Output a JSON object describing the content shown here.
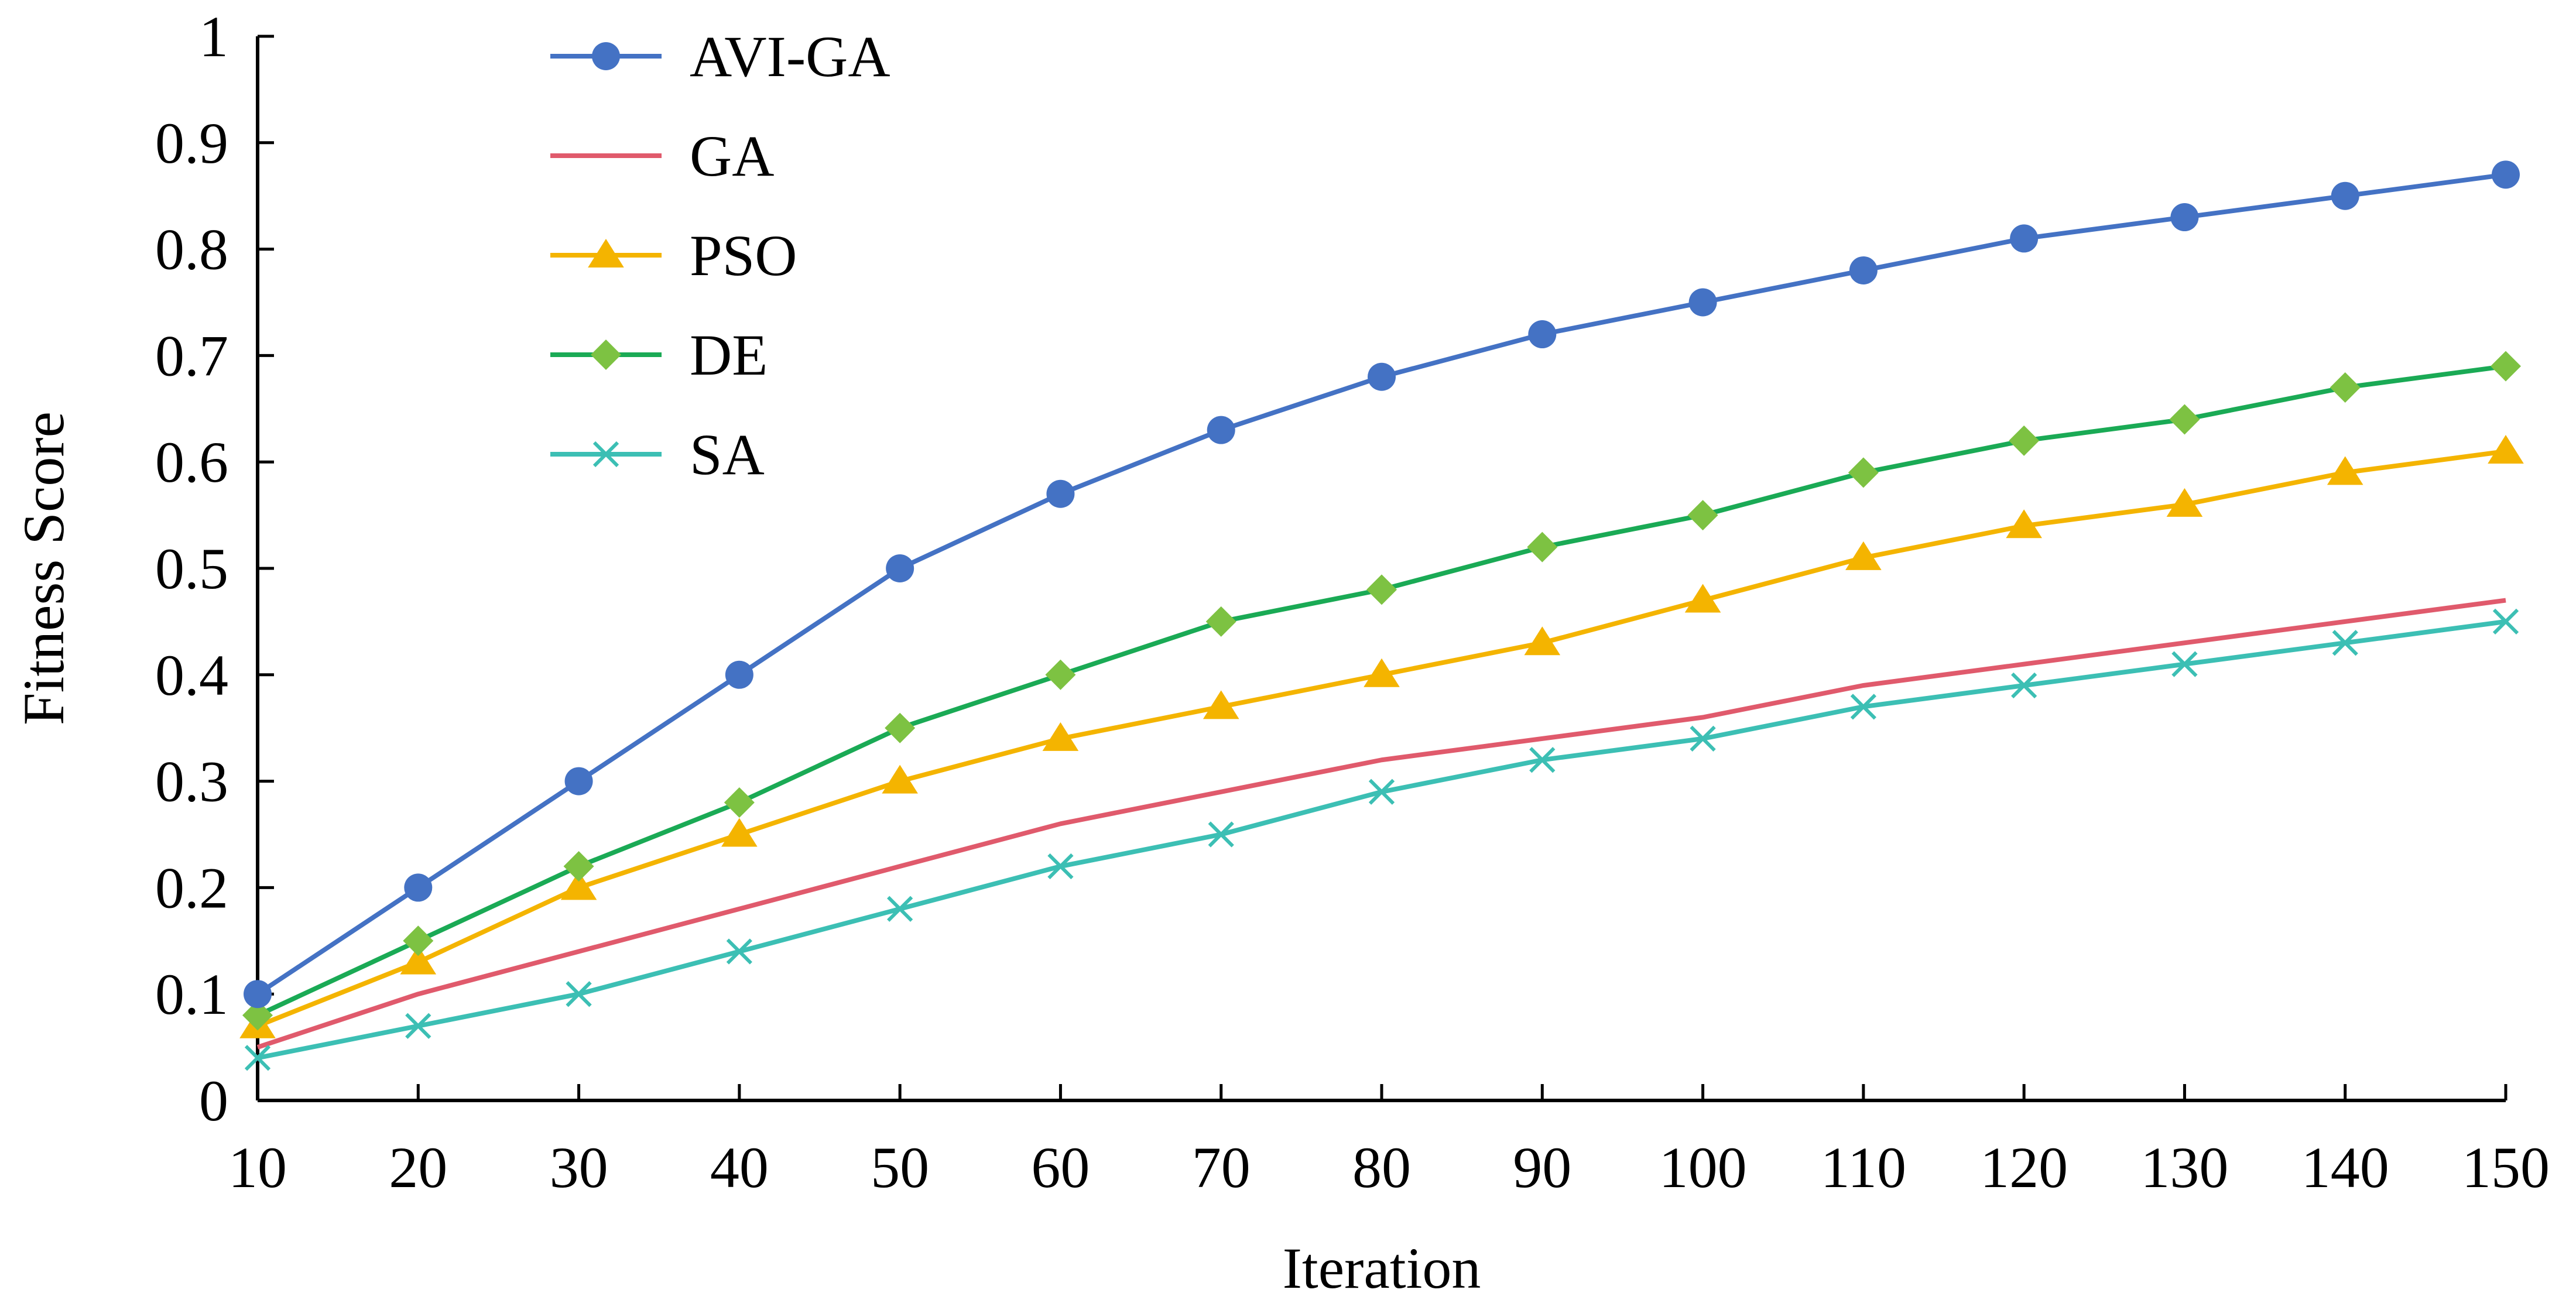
{
  "chart_data": {
    "type": "line",
    "title": "",
    "xlabel": "Iteration",
    "ylabel": "Fitness Score",
    "x": [
      10,
      20,
      30,
      40,
      50,
      60,
      70,
      80,
      90,
      100,
      110,
      120,
      130,
      140,
      150
    ],
    "x_tick_labels": [
      "10",
      "20",
      "30",
      "40",
      "50",
      "60",
      "70",
      "80",
      "90",
      "100",
      "110",
      "120",
      "130",
      "140",
      "150"
    ],
    "ylim": [
      0,
      1
    ],
    "y_ticks": [
      0,
      0.1,
      0.2,
      0.3,
      0.4,
      0.5,
      0.6,
      0.7,
      0.8,
      0.9,
      1
    ],
    "y_tick_labels": [
      "0",
      "0.1",
      "0.2",
      "0.3",
      "0.4",
      "0.5",
      "0.6",
      "0.7",
      "0.8",
      "0.9",
      "1"
    ],
    "grid": false,
    "legend_position": "top-left",
    "series": [
      {
        "name": "AVI-GA",
        "color": "#4472c4",
        "marker": "circle",
        "values": [
          0.1,
          0.2,
          0.3,
          0.4,
          0.5,
          0.57,
          0.63,
          0.68,
          0.72,
          0.75,
          0.78,
          0.81,
          0.83,
          0.85,
          0.87
        ]
      },
      {
        "name": "GA",
        "color": "#e05a6c",
        "marker": "none",
        "values": [
          0.05,
          0.1,
          0.14,
          0.18,
          0.22,
          0.26,
          0.29,
          0.32,
          0.34,
          0.36,
          0.39,
          0.41,
          0.43,
          0.45,
          0.47
        ]
      },
      {
        "name": "PSO",
        "color": "#f4b400",
        "marker": "triangle",
        "values": [
          0.07,
          0.13,
          0.2,
          0.25,
          0.3,
          0.34,
          0.37,
          0.4,
          0.43,
          0.47,
          0.51,
          0.54,
          0.56,
          0.59,
          0.61
        ]
      },
      {
        "name": "DE",
        "color": "#1aaa55",
        "marker": "diamond",
        "marker_color": "#7dc242",
        "values": [
          0.08,
          0.15,
          0.22,
          0.28,
          0.35,
          0.4,
          0.45,
          0.48,
          0.52,
          0.55,
          0.59,
          0.62,
          0.64,
          0.67,
          0.69
        ]
      },
      {
        "name": "SA",
        "color": "#3cbfb4",
        "marker": "x",
        "values": [
          0.04,
          0.07,
          0.1,
          0.14,
          0.18,
          0.22,
          0.25,
          0.29,
          0.32,
          0.34,
          0.37,
          0.39,
          0.41,
          0.43,
          0.45
        ]
      }
    ]
  }
}
